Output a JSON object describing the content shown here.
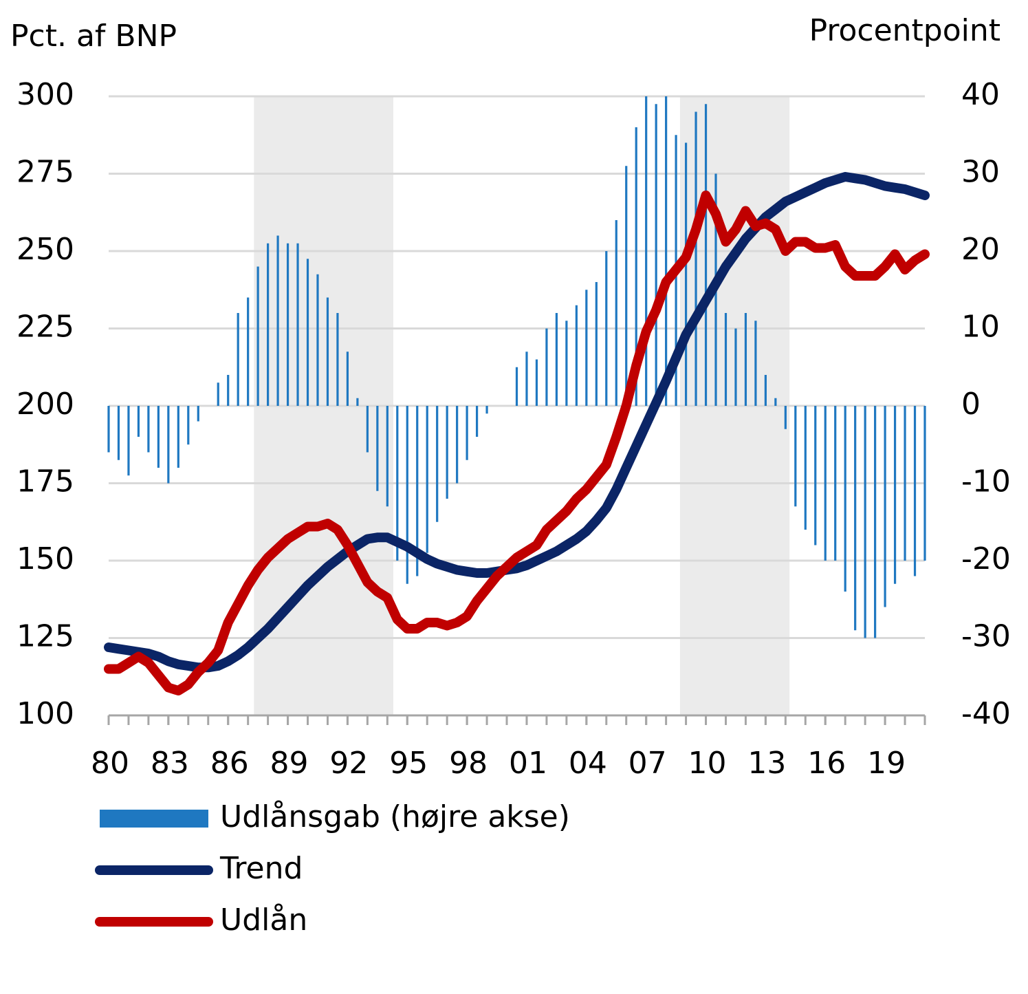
{
  "chart_data": {
    "type": "bar-line",
    "y_label": "Pct. af BNP",
    "y2_label": "Procentpoint",
    "x": [
      1980,
      1980.5,
      1981,
      1981.5,
      1982,
      1982.5,
      1983,
      1983.5,
      1984,
      1984.5,
      1985,
      1985.5,
      1986,
      1986.5,
      1987,
      1987.5,
      1988,
      1988.5,
      1989,
      1989.5,
      1990,
      1990.5,
      1991,
      1991.5,
      1992,
      1992.5,
      1993,
      1993.5,
      1994,
      1994.5,
      1995,
      1995.5,
      1996,
      1996.5,
      1997,
      1997.5,
      1998,
      1998.5,
      1999,
      1999.5,
      2000,
      2000.5,
      2001,
      2001.5,
      2002,
      2002.5,
      2003,
      2003.5,
      2004,
      2004.5,
      2005,
      2005.5,
      2006,
      2006.5,
      2007,
      2007.5,
      2008,
      2008.5,
      2009,
      2009.5,
      2010,
      2010.5,
      2011,
      2011.5,
      2012,
      2012.5,
      2013,
      2013.5,
      2014,
      2014.5,
      2015,
      2015.5,
      2016,
      2016.5,
      2017,
      2017.5,
      2018,
      2018.5,
      2019,
      2019.5,
      2020,
      2020.5,
      2021
    ],
    "series": [
      {
        "name": "Udlånsgab (højre akse)",
        "kind": "bar",
        "axis": "y2",
        "color": "#1f78c1",
        "values": [
          -6,
          -7,
          -9,
          -4,
          -6,
          -8,
          -10,
          -8,
          -5,
          -2,
          0,
          3,
          4,
          12,
          14,
          18,
          21,
          22,
          21,
          21,
          19,
          17,
          14,
          12,
          7,
          1,
          -6,
          -11,
          -13,
          -20,
          -23,
          -22,
          -19,
          -15,
          -12,
          -10,
          -7,
          -4,
          -1,
          0,
          0,
          5,
          7,
          6,
          10,
          12,
          11,
          13,
          15,
          16,
          20,
          24,
          31,
          36,
          40,
          39,
          40,
          35,
          34,
          38,
          39,
          30,
          12,
          10,
          12,
          11,
          4,
          1,
          -3,
          -13,
          -16,
          -18,
          -20,
          -20,
          -24,
          -29,
          -30,
          -30,
          -26,
          -23,
          -20,
          -22,
          -20
        ]
      },
      {
        "name": "Trend",
        "kind": "line",
        "axis": "y",
        "color": "#0b2566",
        "values": [
          122,
          121.5,
          121,
          120.5,
          120,
          119,
          117.5,
          116.5,
          116,
          115.5,
          115.5,
          116,
          117.5,
          119.5,
          122,
          125,
          128,
          131.5,
          135,
          138.5,
          142,
          145,
          148,
          150.5,
          153,
          155,
          157,
          157.5,
          157.5,
          156,
          154.5,
          152.5,
          150.5,
          149,
          148,
          147,
          146.5,
          146,
          146,
          146.5,
          147,
          147.5,
          148.5,
          150,
          151.5,
          153,
          155,
          157,
          159.5,
          163,
          167,
          173,
          180,
          187,
          194,
          201,
          208,
          215.5,
          223,
          228.5,
          234,
          239.5,
          245,
          249.5,
          254,
          257.5,
          261,
          263.5,
          266,
          267.5,
          269,
          270.5,
          272,
          273,
          274,
          273.5,
          273,
          272,
          271,
          270.5,
          270,
          269,
          268
        ]
      },
      {
        "name": "Udlån",
        "kind": "line",
        "axis": "y",
        "color": "#c00000",
        "values": [
          115,
          115,
          117,
          119,
          117,
          113,
          109,
          108,
          110,
          114,
          117,
          121,
          130,
          136,
          142,
          147,
          151,
          154,
          157,
          159,
          161,
          161,
          162,
          160,
          155,
          149,
          143,
          140,
          138,
          131,
          128,
          128,
          130,
          130,
          129,
          130,
          132,
          137,
          141,
          145,
          148,
          151,
          153,
          155,
          160,
          163,
          166,
          170,
          173,
          177,
          181,
          190,
          200,
          213,
          224,
          231,
          240,
          244,
          248,
          257,
          268,
          262,
          253,
          257,
          263,
          258,
          259,
          257,
          250,
          253,
          253,
          251,
          251,
          252,
          245,
          242,
          242,
          242,
          245,
          249,
          244,
          247,
          249
        ]
      }
    ],
    "xlim": [
      1980,
      2021
    ],
    "xticks": [
      {
        "value": 1980,
        "label": "80"
      },
      {
        "value": 1983,
        "label": "83"
      },
      {
        "value": 1986,
        "label": "86"
      },
      {
        "value": 1989,
        "label": "89"
      },
      {
        "value": 1992,
        "label": "92"
      },
      {
        "value": 1995,
        "label": "95"
      },
      {
        "value": 1998,
        "label": "98"
      },
      {
        "value": 2001,
        "label": "01"
      },
      {
        "value": 2004,
        "label": "04"
      },
      {
        "value": 2007,
        "label": "07"
      },
      {
        "value": 2010,
        "label": "10"
      },
      {
        "value": 2013,
        "label": "13"
      },
      {
        "value": 2016,
        "label": "16"
      },
      {
        "value": 2019,
        "label": "19"
      }
    ],
    "ylim": [
      100,
      300
    ],
    "yticks": [
      100,
      125,
      150,
      175,
      200,
      225,
      250,
      275,
      300
    ],
    "y2lim": [
      -40,
      40
    ],
    "y2ticks": [
      -40,
      -30,
      -20,
      -10,
      0,
      10,
      20,
      30,
      40
    ],
    "shaded_periods": [
      [
        1987.3,
        1994.3
      ],
      [
        2008.7,
        2014.2
      ]
    ],
    "grid": true
  }
}
